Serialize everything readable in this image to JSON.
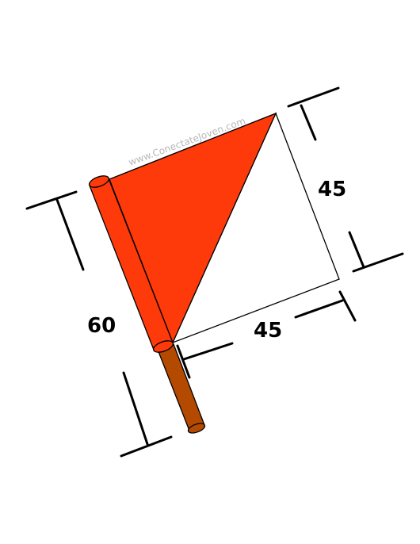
{
  "diagram": {
    "watermark": "www.ConectateJoven.com",
    "labels": {
      "height": "60",
      "side_right": "45",
      "side_bottom": "45"
    },
    "colors": {
      "flag_red": "#ff3a0a",
      "flag_white": "#ffffff",
      "pole_brown": "#b34a00",
      "outline": "#000000"
    }
  }
}
